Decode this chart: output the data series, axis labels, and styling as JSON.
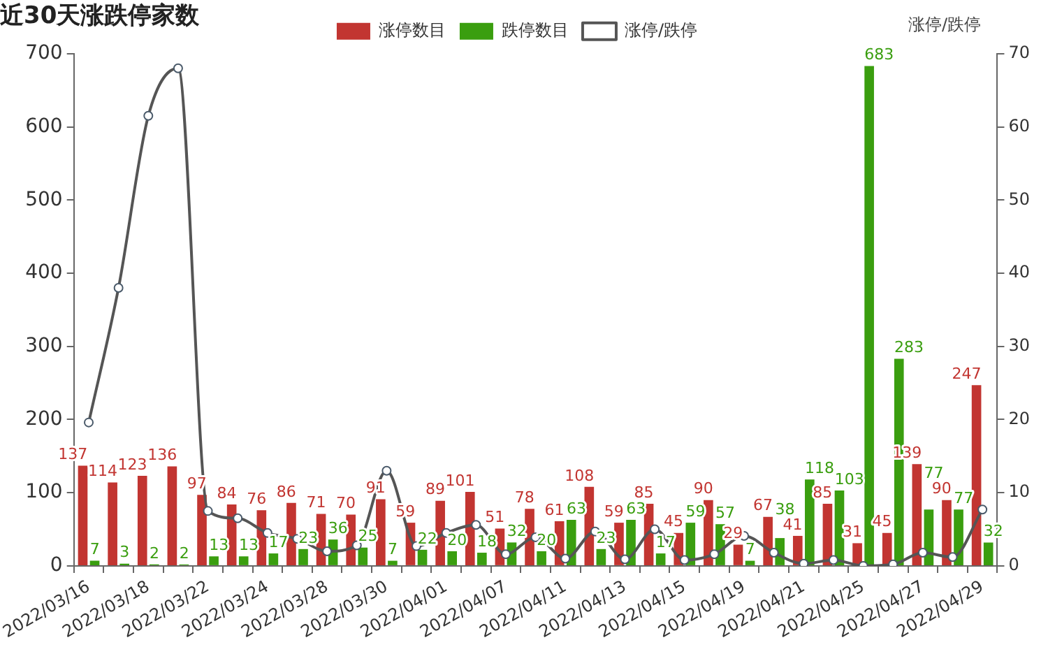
{
  "chart_data": {
    "type": "bar",
    "title": "近30天涨跌停家数",
    "y2label": "涨停/跌停",
    "categories": [
      "2022/03/16",
      null,
      "2022/03/18",
      null,
      "2022/03/22",
      null,
      "2022/03/24",
      null,
      "2022/03/28",
      null,
      "2022/03/30",
      null,
      "2022/04/01",
      null,
      "2022/04/07",
      null,
      "2022/04/11",
      null,
      "2022/04/13",
      null,
      "2022/04/15",
      null,
      "2022/04/19",
      null,
      "2022/04/21",
      null,
      "2022/04/25",
      null,
      "2022/04/27",
      null,
      "2022/04/29"
    ],
    "series": [
      {
        "name": "涨停数目",
        "color": "#c23531",
        "values": [
          137,
          114,
          123,
          136,
          97,
          84,
          76,
          86,
          71,
          70,
          91,
          59,
          89,
          101,
          51,
          78,
          61,
          108,
          59,
          85,
          45,
          90,
          29,
          67,
          41,
          85,
          31,
          45,
          139,
          90,
          247
        ],
        "value_labels": [
          "137",
          "114",
          "123",
          "136",
          "97",
          "84",
          "76",
          "86",
          "71",
          "70",
          "91",
          "59",
          "89",
          "101",
          "51",
          "78",
          "61",
          "108",
          "59",
          "85",
          "45",
          "90",
          "29",
          "67",
          "41",
          "85",
          "31",
          "45",
          "139",
          "90",
          "247"
        ]
      },
      {
        "name": "跌停数目",
        "color": "#3a9e0f",
        "values": [
          7,
          3,
          2,
          2,
          13,
          13,
          17,
          23,
          36,
          25,
          7,
          22,
          20,
          18,
          32,
          20,
          63,
          23,
          63,
          17,
          59,
          57,
          7,
          38,
          118,
          103,
          683,
          283,
          77,
          77,
          32
        ],
        "value_labels": [
          "7",
          "3",
          "2",
          "2",
          "13",
          "13",
          "17",
          "23",
          "36",
          "25",
          "7",
          "22",
          "20",
          "18",
          "32",
          "20",
          "63",
          "23",
          "63",
          "17",
          "59",
          "57",
          "7",
          "38",
          "118",
          "103",
          "683",
          "283",
          "77",
          "77",
          "32"
        ]
      },
      {
        "name": "涨停/跌停",
        "type": "line",
        "axis": "y2",
        "color": "#555555",
        "values": [
          19.6,
          38,
          61.5,
          68,
          7.5,
          6.5,
          4.5,
          3.7,
          2,
          2.8,
          13,
          2.7,
          4.5,
          5.6,
          1.6,
          3.9,
          1,
          4.7,
          0.9,
          5,
          0.8,
          1.6,
          4.1,
          1.8,
          0.3,
          0.8,
          0,
          0.2,
          1.8,
          1.2,
          7.7
        ]
      }
    ],
    "ylim": [
      0,
      700
    ],
    "yticks": [
      0,
      100,
      200,
      300,
      400,
      500,
      600,
      700
    ],
    "y2lim": [
      0,
      70
    ],
    "y2ticks": [
      0,
      10,
      20,
      30,
      40,
      50,
      60,
      70
    ],
    "legend": "top",
    "grid": false,
    "marker": "circle"
  }
}
